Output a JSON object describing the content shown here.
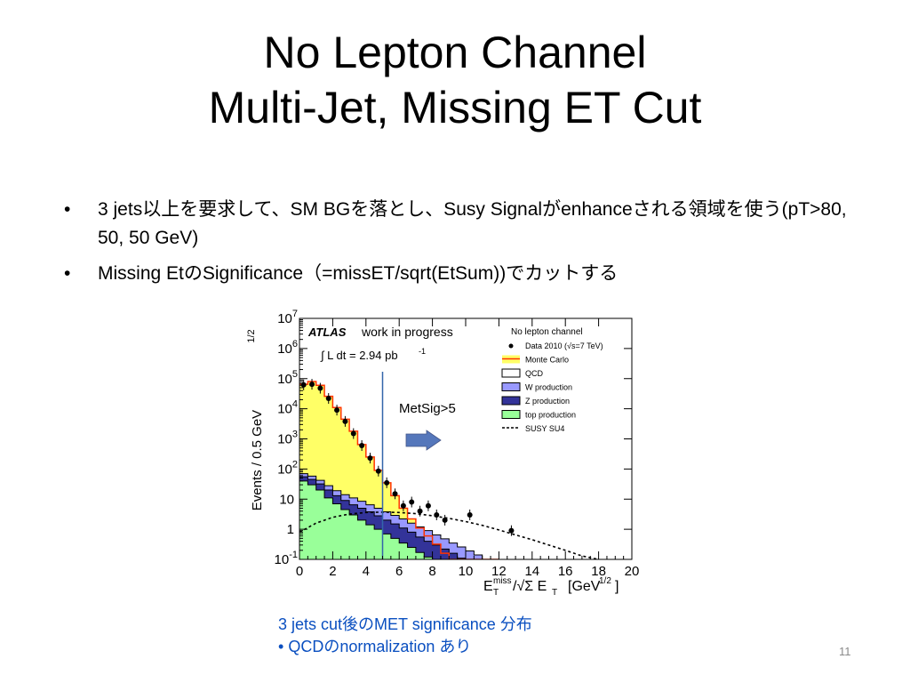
{
  "slide": {
    "title_line1": "No Lepton Channel",
    "title_line2": "Multi-Jet, Missing ET Cut",
    "bullets": [
      "3 jets以上を要求して、SM BGを落とし、Susy Signalがenhanceされる領域を使う(pT>80, 50, 50 GeV)",
      "Missing EtのSignificance（=missET/sqrt(EtSum))でカットする"
    ],
    "caption_line1": "3 jets cut後のMET significance 分布",
    "caption_line2": "QCDのnormalization あり",
    "caption_bullet": "•",
    "page_number": "11",
    "colors": {
      "caption": "#0a4fc0",
      "page_number": "#8a8a8a"
    }
  },
  "chart_data": {
    "type": "histogram",
    "header_title": "ATLAS",
    "header_subtitle": "work in progress",
    "lumi_label_prefix": "∫ L dt = 2.94 pb",
    "lumi_label_exp": "-1",
    "annotation": "MetSig>5",
    "cut_value": 5,
    "xlabel": "E_T^miss/√Σ E_T [GeV^1/2]",
    "ylabel": "Events / 0.5 GeV^1/2",
    "xlim": [
      0,
      20
    ],
    "ylim": [
      0.1,
      10000000
    ],
    "yscale": "log",
    "bin_width": 0.5,
    "x_ticks": [
      "0",
      "2",
      "4",
      "6",
      "8",
      "10",
      "12",
      "14",
      "16",
      "18",
      "20"
    ],
    "y_ticks": [
      {
        "value": 0.1,
        "base": "10",
        "exp": "-1"
      },
      {
        "value": 1,
        "base": "1",
        "exp": ""
      },
      {
        "value": 10,
        "base": "10",
        "exp": ""
      },
      {
        "value": 100,
        "base": "10",
        "exp": "2"
      },
      {
        "value": 1000,
        "base": "10",
        "exp": "3"
      },
      {
        "value": 10000,
        "base": "10",
        "exp": "4"
      },
      {
        "value": 100000,
        "base": "10",
        "exp": "5"
      },
      {
        "value": 1000000,
        "base": "10",
        "exp": "6"
      },
      {
        "value": 10000000,
        "base": "10",
        "exp": "7"
      }
    ],
    "legend_title": "No lepton channel",
    "legend": [
      {
        "label": "Data 2010 (√s=7 TeV)",
        "style": "marker",
        "color": "#000000"
      },
      {
        "label": "Monte Carlo",
        "style": "band",
        "color": "#ffff66",
        "edge": "#ff3300"
      },
      {
        "label": "QCD",
        "style": "fill",
        "color": "#ffffff",
        "edge": "#000000"
      },
      {
        "label": "W production",
        "style": "fill",
        "color": "#9999ff",
        "edge": "#000000"
      },
      {
        "label": "Z production",
        "style": "fill",
        "color": "#333399",
        "edge": "#000000"
      },
      {
        "label": "top production",
        "style": "fill",
        "color": "#99ff99",
        "edge": "#000000"
      },
      {
        "label": "SUSY SU4",
        "style": "dashed",
        "color": "#000000"
      }
    ],
    "colors": {
      "mc_band": "#ffff66",
      "mc_line": "#ff3300",
      "qcd": "#ffffff",
      "w": "#9999ff",
      "z": "#333399",
      "top": "#99ff99",
      "cut_line": "#3366aa",
      "arrow": "#5577bb"
    },
    "mc_total": [
      65000,
      80000,
      60000,
      26000,
      11000,
      4500,
      1800,
      650,
      250,
      90,
      35,
      13,
      5,
      2.2,
      1.1,
      0.6,
      0.32,
      0.16,
      0.09,
      0.05,
      0.03,
      0.02,
      0.013,
      0.01
    ],
    "top": [
      40,
      30,
      20,
      11,
      7,
      4.5,
      3,
      2,
      1.4,
      1,
      0.7,
      0.5,
      0.35,
      0.25,
      0.17,
      0.12,
      0.09,
      0.06,
      0.045,
      0.03,
      0.022,
      0.015,
      0.011,
      0.008,
      0.006,
      0.004
    ],
    "z_plus_top": [
      55,
      45,
      32,
      20,
      13,
      9,
      6.5,
      5,
      3.8,
      2.8,
      2,
      1.5,
      1.1,
      0.8,
      0.55,
      0.4,
      0.3,
      0.22,
      0.16,
      0.11,
      0.08,
      0.06,
      0.045,
      0.033,
      0.025,
      0.018
    ],
    "w_z_top": [
      70,
      58,
      42,
      28,
      19,
      14,
      11,
      8.5,
      6.5,
      5,
      3.8,
      2.9,
      2.2,
      1.6,
      1.2,
      0.9,
      0.65,
      0.48,
      0.35,
      0.26,
      0.19,
      0.14,
      0.1,
      0.075,
      0.055,
      0.04
    ],
    "data": [
      {
        "x": 0.25,
        "y": 62000
      },
      {
        "x": 0.75,
        "y": 65000
      },
      {
        "x": 1.25,
        "y": 48000
      },
      {
        "x": 1.75,
        "y": 22000
      },
      {
        "x": 2.25,
        "y": 9000
      },
      {
        "x": 2.75,
        "y": 3800
      },
      {
        "x": 3.25,
        "y": 1500
      },
      {
        "x": 3.75,
        "y": 600
      },
      {
        "x": 4.25,
        "y": 230
      },
      {
        "x": 4.75,
        "y": 85
      },
      {
        "x": 5.25,
        "y": 35
      },
      {
        "x": 5.75,
        "y": 15
      },
      {
        "x": 6.25,
        "y": 6
      },
      {
        "x": 6.75,
        "y": 8
      },
      {
        "x": 7.25,
        "y": 4
      },
      {
        "x": 7.75,
        "y": 6
      },
      {
        "x": 8.25,
        "y": 3
      },
      {
        "x": 8.75,
        "y": 2
      },
      {
        "x": 10.25,
        "y": 3
      },
      {
        "x": 12.75,
        "y": 0.9
      }
    ],
    "susy": [
      {
        "x": 0,
        "y": 0.8
      },
      {
        "x": 1,
        "y": 1.6
      },
      {
        "x": 2,
        "y": 2.5
      },
      {
        "x": 3,
        "y": 3.2
      },
      {
        "x": 4,
        "y": 3.6
      },
      {
        "x": 5,
        "y": 3.7
      },
      {
        "x": 6,
        "y": 3.6
      },
      {
        "x": 7,
        "y": 3.3
      },
      {
        "x": 8,
        "y": 2.8
      },
      {
        "x": 9,
        "y": 2.3
      },
      {
        "x": 10,
        "y": 1.8
      },
      {
        "x": 11,
        "y": 1.35
      },
      {
        "x": 12,
        "y": 0.95
      },
      {
        "x": 13,
        "y": 0.65
      },
      {
        "x": 14,
        "y": 0.45
      },
      {
        "x": 15,
        "y": 0.3
      },
      {
        "x": 16,
        "y": 0.2
      },
      {
        "x": 17,
        "y": 0.13
      },
      {
        "x": 18,
        "y": 0.1
      }
    ]
  }
}
